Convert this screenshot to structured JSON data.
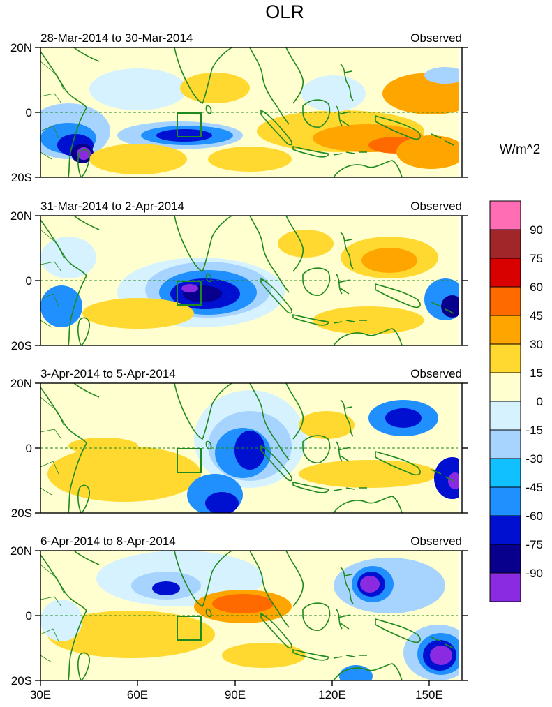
{
  "title": "OLR",
  "units": "W/m^2",
  "panels": [
    {
      "date_range": "28-Mar-2014 to 30-Mar-2014",
      "label": "Observed"
    },
    {
      "date_range": "31-Mar-2014 to 2-Apr-2014",
      "label": "Observed"
    },
    {
      "date_range": "3-Apr-2014 to 5-Apr-2014",
      "label": "Observed"
    },
    {
      "date_range": "6-Apr-2014 to 8-Apr-2014",
      "label": "Observed"
    }
  ],
  "lat_labels": [
    "20N",
    "0",
    "20S"
  ],
  "lon_labels": [
    "30E",
    "60E",
    "90E",
    "120E",
    "150E"
  ],
  "colorbar": {
    "labels": [
      "90",
      "75",
      "60",
      "45",
      "30",
      "15",
      "0",
      "-15",
      "-30",
      "-45",
      "-60",
      "-75",
      "-90"
    ],
    "colors_top_to_bottom": [
      "#ff6eb4",
      "#a0262a",
      "#d90000",
      "#ff6a00",
      "#ffa500",
      "#ffd830",
      "#ffffd0",
      "#d6f2ff",
      "#a6d4ff",
      "#10c0ff",
      "#2090ff",
      "#0010d0",
      "#08008c",
      "#8a2be2"
    ]
  },
  "map_colors": {
    "land_outline": "#1f8a1f",
    "equator_line": "#1f8a1f"
  },
  "map": {
    "lon_range": [
      30,
      160
    ],
    "lat_range": [
      -20,
      20
    ]
  }
}
